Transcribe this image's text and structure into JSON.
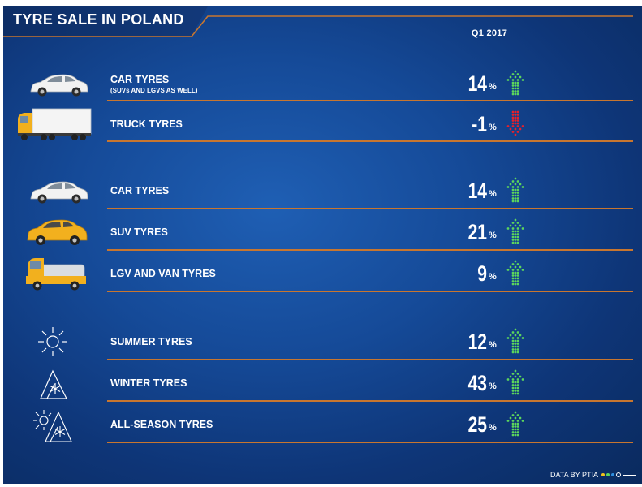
{
  "header": {
    "title": "TYRE SALE IN POLAND",
    "period": "Q1 2017"
  },
  "chart_data": {
    "type": "table",
    "title": "TYRE SALE IN POLAND",
    "period": "Q1 2017",
    "unit": "%",
    "colors": {
      "up": "#5cd65c",
      "down": "#e8202a",
      "divider": "#c8762f"
    },
    "groups": [
      {
        "rows": [
          {
            "label": "CAR TYRES",
            "sublabel": "(SUVs AND LGVS AS WELL)",
            "value": 14,
            "display": "14",
            "trend": "up",
            "icon": "car-icon"
          },
          {
            "label": "TRUCK TYRES",
            "value": -1,
            "display": "-1",
            "trend": "down",
            "icon": "truck-icon"
          }
        ]
      },
      {
        "rows": [
          {
            "label": "CAR TYRES",
            "value": 14,
            "display": "14",
            "trend": "up",
            "icon": "car-icon"
          },
          {
            "label": "SUV TYRES",
            "value": 21,
            "display": "21",
            "trend": "up",
            "icon": "suv-icon"
          },
          {
            "label": "LGV AND VAN TYRES",
            "value": 9,
            "display": "9",
            "trend": "up",
            "icon": "van-icon"
          }
        ]
      },
      {
        "rows": [
          {
            "label": "SUMMER TYRES",
            "value": 12,
            "display": "12",
            "trend": "up",
            "icon": "sun-icon"
          },
          {
            "label": "WINTER TYRES",
            "value": 43,
            "display": "43",
            "trend": "up",
            "icon": "snow-mountain-icon"
          },
          {
            "label": "ALL-SEASON TYRES",
            "value": 25,
            "display": "25",
            "trend": "up",
            "icon": "sun-snow-mountain-icon"
          }
        ]
      }
    ]
  },
  "footer": {
    "source": "DATA BY PTIA"
  }
}
